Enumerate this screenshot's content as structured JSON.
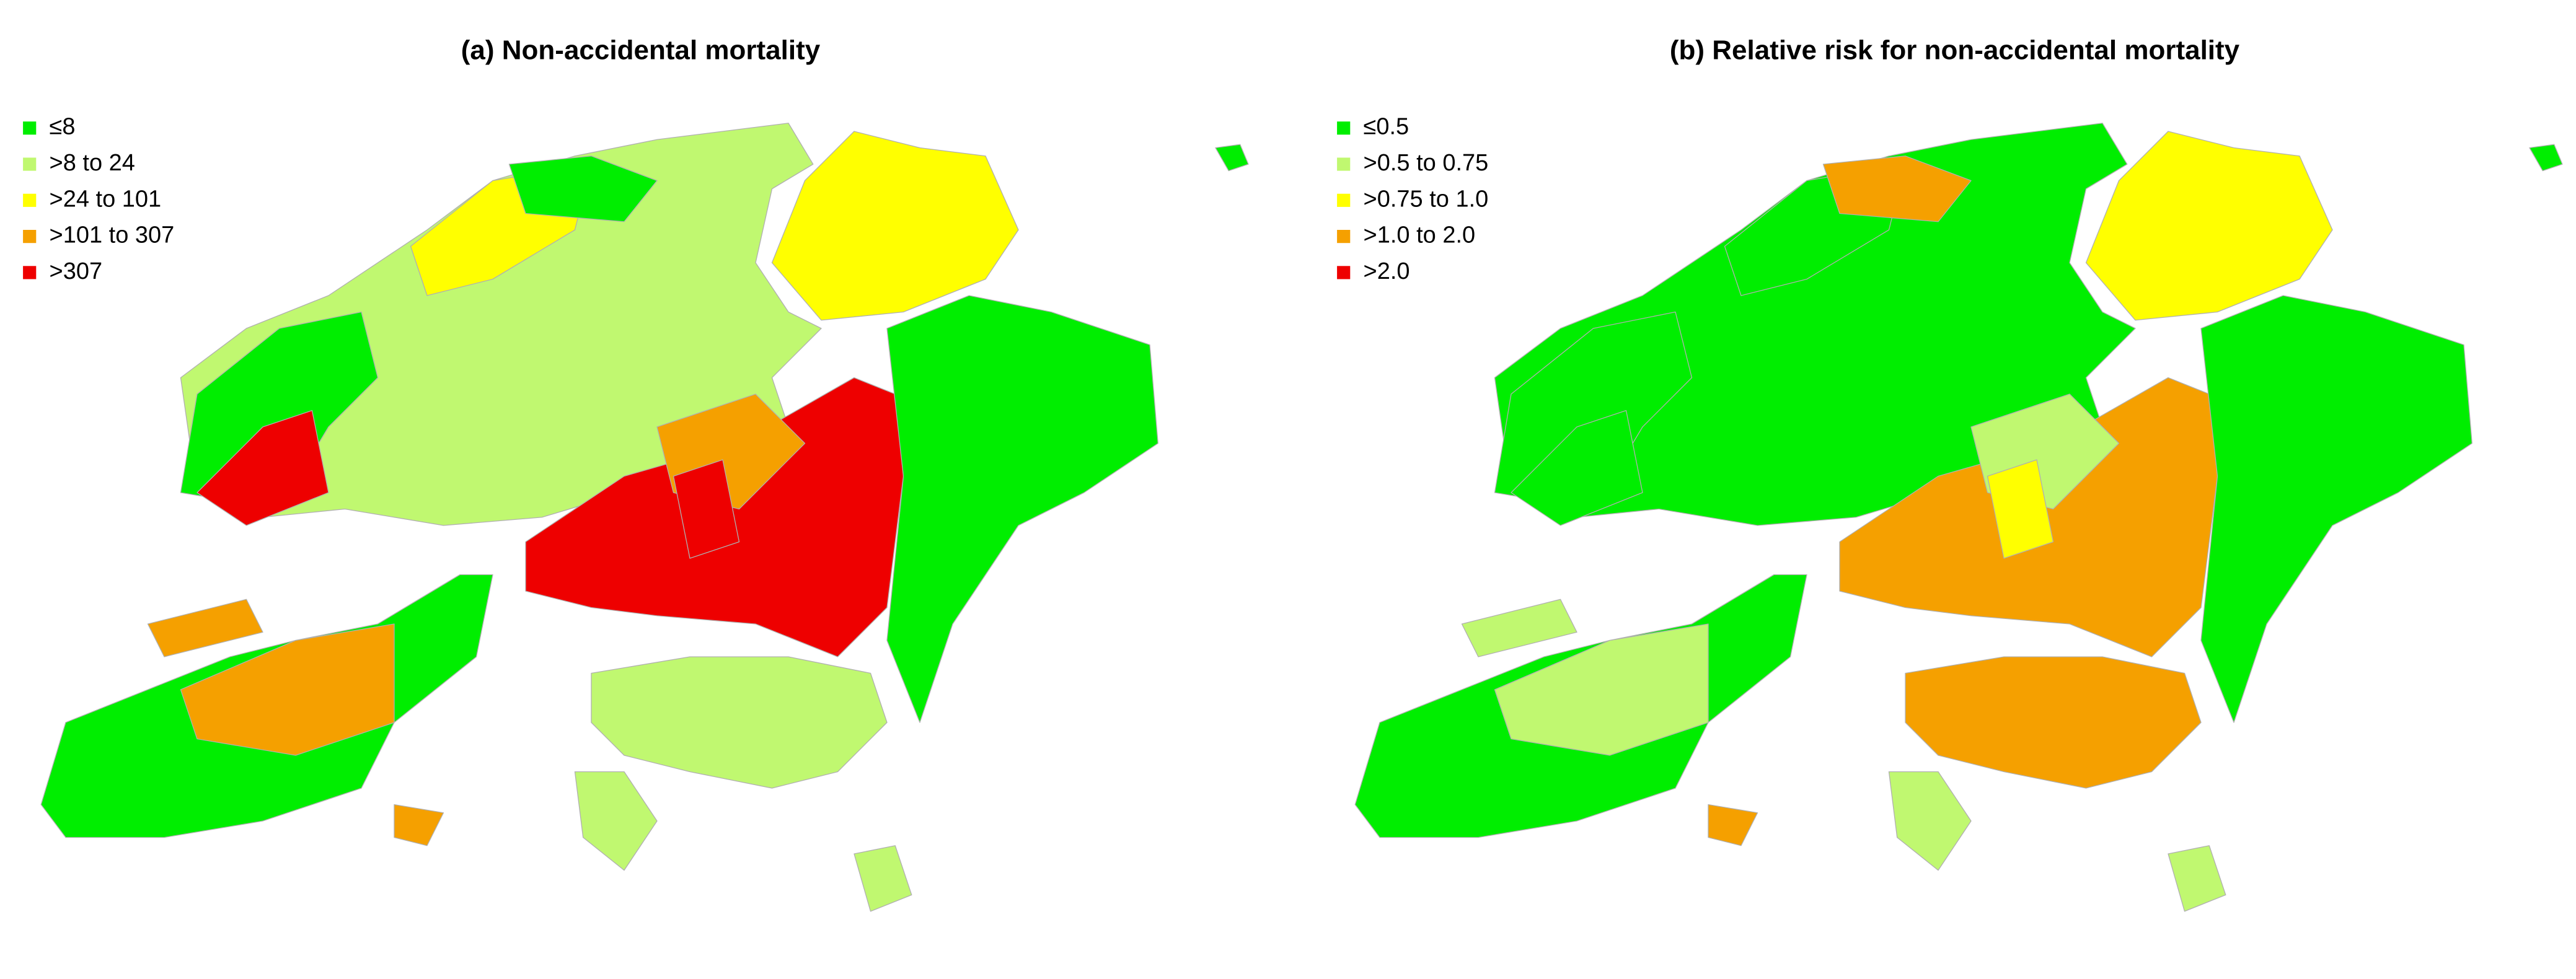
{
  "panels": [
    {
      "title": "(a) Non-accidental mortality",
      "legend": [
        {
          "label": "≤8",
          "color": "#00ee00"
        },
        {
          "label": ">8 to 24",
          "color": "#c0f870"
        },
        {
          "label": ">24 to 101",
          "color": "#ffff00"
        },
        {
          "label": ">101 to 307",
          "color": "#f5a000"
        },
        {
          "label": ">307",
          "color": "#ee0000"
        }
      ]
    },
    {
      "title": "(b) Relative risk for non-accidental mortality",
      "legend": [
        {
          "label": "≤0.5",
          "color": "#00ee00"
        },
        {
          "label": ">0.5 to 0.75",
          "color": "#c0f870"
        },
        {
          "label": ">0.75 to 1.0",
          "color": "#ffff00"
        },
        {
          "label": ">1.0 to 2.0",
          "color": "#f5a000"
        },
        {
          "label": ">2.0",
          "color": "#ee0000"
        }
      ]
    }
  ]
}
